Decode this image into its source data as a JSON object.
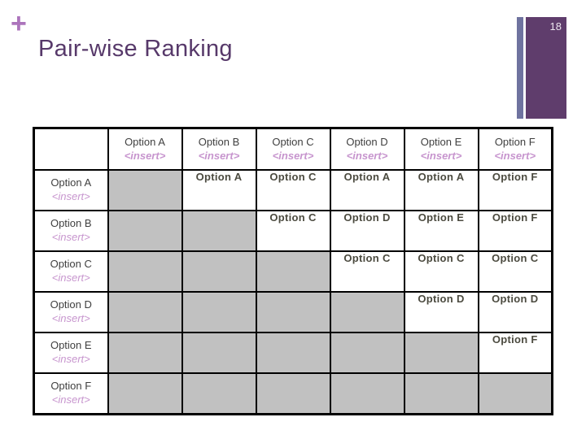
{
  "slide": {
    "page_number": "18",
    "title": "Pair-wise Ranking",
    "plus_glyph": "+"
  },
  "colors": {
    "title_text": "#57396a",
    "plus_glyph": "#ac74bc",
    "accent_bar_purple": "#5f3d6c",
    "accent_bar_blue": "#6f739f",
    "grayed_cell": "#c1c1c1",
    "insert_text": "#c795ce",
    "value_text": "#4b4a3f",
    "header_text": "#3f3f3f",
    "table_border": "#000000"
  },
  "table": {
    "corner_label": "",
    "insert_placeholder": "<insert>",
    "column_headers": [
      "Option A",
      "Option B",
      "Option C",
      "Option D",
      "Option E",
      "Option F"
    ],
    "row_headers": [
      "Option A",
      "Option B",
      "Option C",
      "Option D",
      "Option E",
      "Option F"
    ],
    "cells": [
      [
        null,
        "Option A",
        "Option C",
        "Option A",
        "Option A",
        "Option F"
      ],
      [
        null,
        null,
        "Option C",
        "Option D",
        "Option E",
        "Option F"
      ],
      [
        null,
        null,
        null,
        "Option C",
        "Option C",
        "Option C"
      ],
      [
        null,
        null,
        null,
        null,
        "Option D",
        "Option D"
      ],
      [
        null,
        null,
        null,
        null,
        null,
        "Option F"
      ],
      [
        null,
        null,
        null,
        null,
        null,
        null
      ]
    ]
  }
}
